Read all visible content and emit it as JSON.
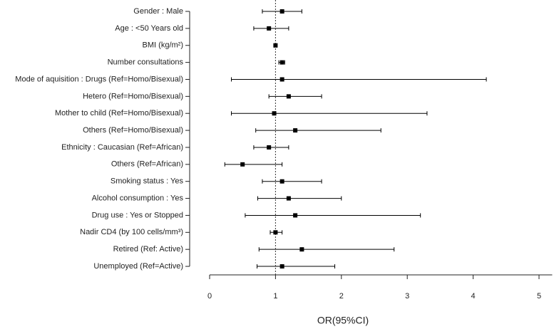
{
  "chart_data": {
    "type": "forest",
    "categories": [
      "Gender : Male",
      "Age : <50 Years old",
      "BMI (kg/m²)",
      "Number consultations",
      "Mode of aquisition : Drugs (Ref=Homo/Bisexual)",
      "Hetero (Ref=Homo/Bisexual)",
      "Mother to child (Ref=Homo/Bisexual)",
      "Others (Ref=Homo/Bisexual)",
      "Ethnicity : Caucasian (Ref=African)",
      "Others (Ref=African)",
      "Smoking status : Yes",
      "Alcohol consumption : Yes",
      "Drug use : Yes or Stopped",
      "Nadir CD4 (by 100 cells/mm³)",
      "Retired (Ref: Active)",
      "Unemployed (Ref=Active)"
    ],
    "values": [
      1.1,
      0.9,
      1.0,
      1.1,
      1.1,
      1.2,
      0.98,
      1.3,
      0.9,
      0.5,
      1.1,
      1.2,
      1.3,
      1.0,
      1.4,
      1.1
    ],
    "lower": [
      0.8,
      0.67,
      0.98,
      1.05,
      0.33,
      0.9,
      0.33,
      0.7,
      0.67,
      0.23,
      0.8,
      0.73,
      0.54,
      0.92,
      0.75,
      0.72
    ],
    "upper": [
      1.4,
      1.2,
      1.02,
      1.14,
      4.2,
      1.7,
      3.3,
      2.6,
      1.2,
      1.1,
      1.7,
      2.0,
      3.2,
      1.1,
      2.8,
      1.9
    ],
    "xlabel": "OR(95%CI)",
    "xlim": [
      0,
      5.2
    ],
    "xticks": [
      0,
      1,
      2,
      3,
      4,
      5
    ],
    "reference_line": 1,
    "color": "#000000"
  }
}
